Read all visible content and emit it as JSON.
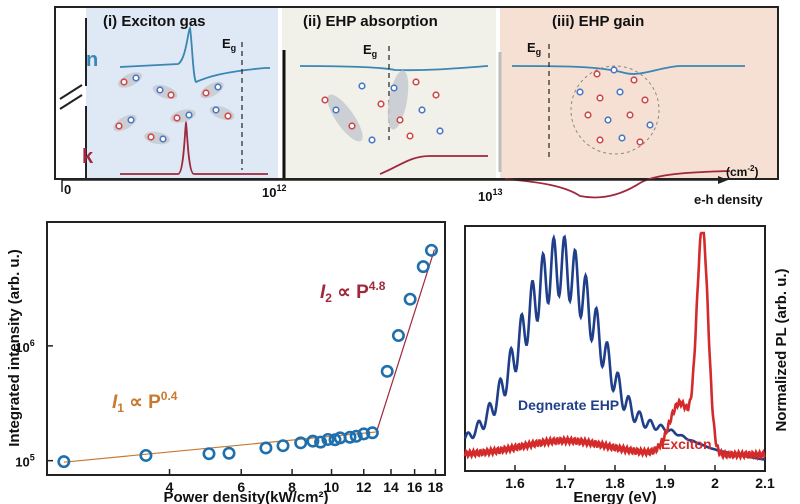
{
  "top_panel": {
    "sections": [
      {
        "title": "(i)  Exciton gas",
        "bg": "#dfe9f5"
      },
      {
        "title": "(ii)  EHP absorption",
        "bg": "#f1f1ea"
      },
      {
        "title": "(iii)  EHP gain",
        "bg": "#f6e0d4"
      }
    ],
    "n_label": "n",
    "k_label": "k",
    "eg_label": "E",
    "eg_sub": "g",
    "origin_label": "0",
    "ticks": [
      {
        "base": "10",
        "exp": "12"
      },
      {
        "base": "10",
        "exp": "13"
      }
    ],
    "axis_unit": "(cm",
    "axis_unit_exp": "-2",
    "axis_unit_close": ")",
    "axis_label": "e-h density",
    "colors": {
      "n": "#3a86b4",
      "k": "#a0283c",
      "electron": "#d04848",
      "hole": "#4a78c8"
    }
  },
  "chart_data": [
    {
      "type": "scatter",
      "xlabel": "Power density(kW/cm²)",
      "ylabel": "Integrated intensity (arb. u.)",
      "x_scale": "log",
      "y_scale": "log",
      "xlim": [
        2.0,
        19.0
      ],
      "ylim": [
        75000,
        12000000
      ],
      "x_ticks": [
        4,
        6,
        8,
        10,
        12,
        14,
        16,
        18
      ],
      "y_ticks": [
        {
          "value": 100000,
          "base": "10",
          "exp": "5"
        },
        {
          "value": 1000000,
          "base": "10",
          "exp": "6"
        }
      ],
      "series": [
        {
          "points": [
            [
              2.2,
              98000
            ],
            [
              3.5,
              111000
            ],
            [
              5.0,
              115000
            ],
            [
              5.6,
              116000
            ],
            [
              6.9,
              129000
            ],
            [
              7.6,
              135000
            ],
            [
              8.4,
              143000
            ],
            [
              9.0,
              148000
            ],
            [
              9.4,
              145000
            ],
            [
              9.8,
              153000
            ],
            [
              10.2,
              152000
            ],
            [
              10.5,
              158000
            ],
            [
              11.1,
              160000
            ],
            [
              11.5,
              163000
            ],
            [
              12.0,
              171000
            ],
            [
              12.6,
              175000
            ],
            [
              13.7,
              600000
            ],
            [
              14.6,
              1230000
            ],
            [
              15.6,
              2550000
            ],
            [
              16.8,
              4900000
            ],
            [
              17.6,
              6800000
            ]
          ],
          "color": "#1f6fad"
        }
      ],
      "fits": [
        {
          "label_var": "I",
          "label_sub": "1",
          "label_rel": " ∝ P",
          "label_exp": "0.4",
          "from": [
            2.2,
            97000
          ],
          "to": [
            12.9,
            178000
          ],
          "color": "#c77a30"
        },
        {
          "label_var": "I",
          "label_sub": "2",
          "label_rel": " ∝ P",
          "label_exp": "4.8",
          "from": [
            12.9,
            178000
          ],
          "to": [
            17.9,
            6900000
          ],
          "color": "#a0283c"
        }
      ]
    },
    {
      "type": "line",
      "xlabel": "Energy (eV)",
      "ylabel": "Normalized PL (arb. u.)",
      "xlim": [
        1.5,
        2.1
      ],
      "ylim": [
        0,
        1.05
      ],
      "x_ticks": [
        1.6,
        1.7,
        1.8,
        1.9,
        2.0,
        2.1
      ],
      "series": [
        {
          "name": "Degnerate EHP",
          "color": "#1f3f8a"
        },
        {
          "name": "Exciton",
          "color": "#d42a2a"
        }
      ]
    }
  ]
}
